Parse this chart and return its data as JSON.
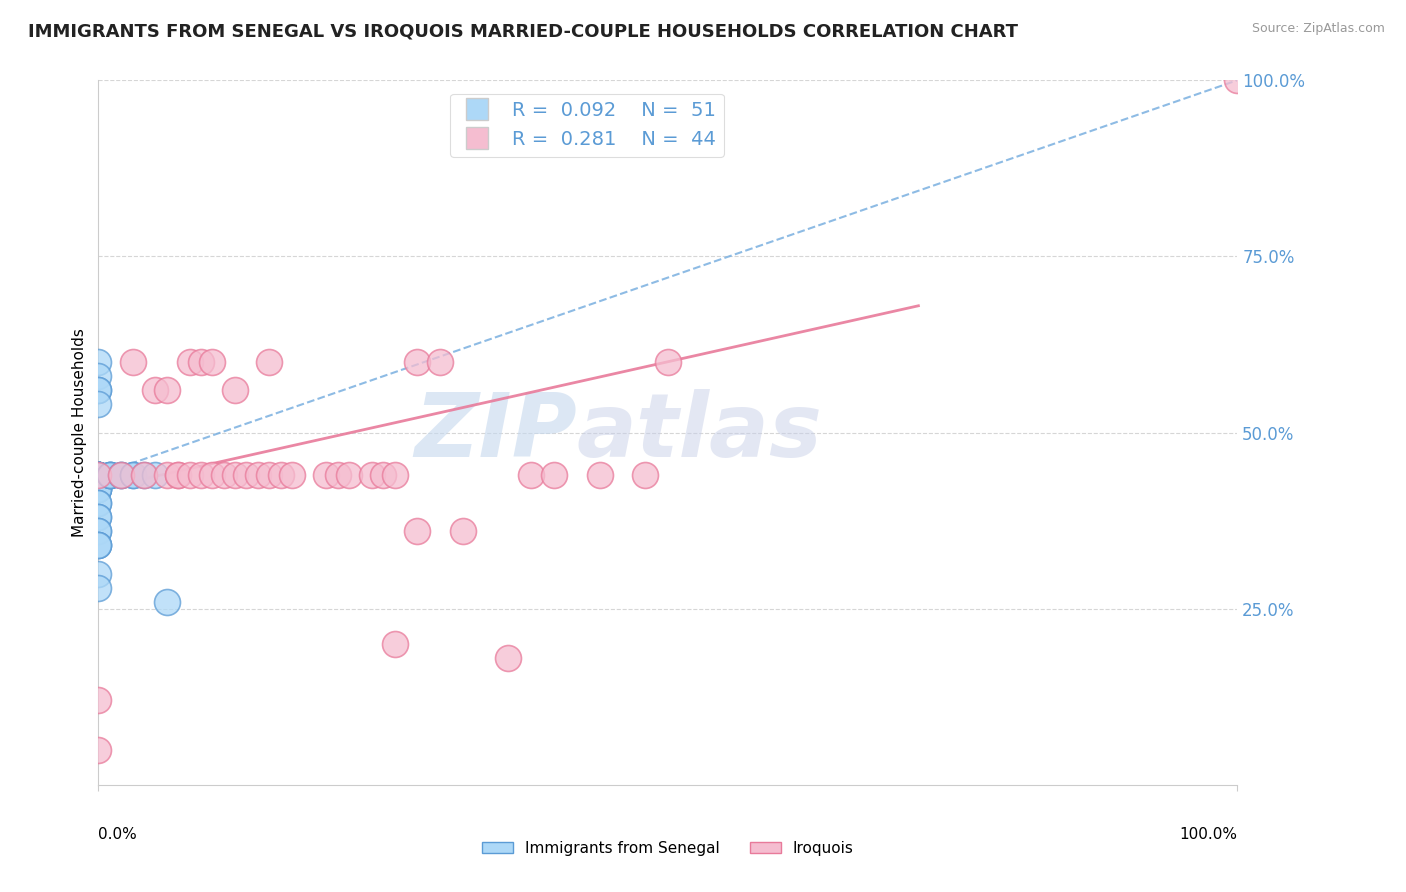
{
  "title": "IMMIGRANTS FROM SENEGAL VS IROQUOIS MARRIED-COUPLE HOUSEHOLDS CORRELATION CHART",
  "source": "Source: ZipAtlas.com",
  "ylabel": "Married-couple Households",
  "legend_label1": "Immigrants from Senegal",
  "legend_label2": "Iroquois",
  "r1": 0.092,
  "n1": 51,
  "r2": 0.281,
  "n2": 44,
  "color_blue": "#add8f7",
  "color_pink": "#f5bdd0",
  "color_blue_dark": "#5b9bd5",
  "color_pink_dark": "#e87a9a",
  "color_blue_line": "#7ab0e0",
  "color_pink_line": "#e87a9a",
  "watermark_zip": "ZIP",
  "watermark_atlas": "atlas",
  "blue_points_x": [
    0.0,
    0.0,
    0.0,
    0.0,
    0.0,
    0.0,
    0.0,
    0.0,
    0.0,
    0.0,
    0.0,
    0.0,
    0.0,
    0.0,
    0.0,
    0.0,
    0.0,
    0.0,
    0.0,
    0.0,
    0.0,
    0.0,
    0.0,
    0.0,
    0.0,
    0.0,
    0.0,
    0.0,
    0.0,
    0.0,
    0.0,
    0.0,
    0.0,
    0.0,
    0.0,
    0.0,
    0.0,
    0.0,
    0.0,
    0.0,
    0.01,
    0.01,
    0.01,
    0.01,
    0.02,
    0.02,
    0.03,
    0.03,
    0.04,
    0.05,
    0.06
  ],
  "blue_points_y": [
    0.44,
    0.44,
    0.44,
    0.44,
    0.44,
    0.44,
    0.44,
    0.44,
    0.44,
    0.44,
    0.44,
    0.44,
    0.44,
    0.44,
    0.44,
    0.44,
    0.44,
    0.44,
    0.44,
    0.44,
    0.42,
    0.42,
    0.42,
    0.42,
    0.4,
    0.4,
    0.38,
    0.38,
    0.36,
    0.36,
    0.34,
    0.34,
    0.34,
    0.3,
    0.28,
    0.6,
    0.58,
    0.56,
    0.56,
    0.54,
    0.44,
    0.44,
    0.44,
    0.44,
    0.44,
    0.44,
    0.44,
    0.44,
    0.44,
    0.44,
    0.26
  ],
  "pink_points_x": [
    0.0,
    0.0,
    0.0,
    0.02,
    0.03,
    0.04,
    0.05,
    0.06,
    0.06,
    0.07,
    0.07,
    0.08,
    0.08,
    0.09,
    0.09,
    0.1,
    0.1,
    0.11,
    0.12,
    0.12,
    0.13,
    0.14,
    0.15,
    0.15,
    0.16,
    0.17,
    0.2,
    0.21,
    0.22,
    0.24,
    0.26,
    0.28,
    0.3,
    0.38,
    0.4,
    0.44,
    0.48,
    0.5,
    0.25,
    0.26,
    0.28,
    0.32,
    0.36,
    1.0
  ],
  "pink_points_y": [
    0.44,
    0.12,
    0.05,
    0.44,
    0.6,
    0.44,
    0.56,
    0.44,
    0.56,
    0.44,
    0.44,
    0.6,
    0.44,
    0.44,
    0.6,
    0.6,
    0.44,
    0.44,
    0.44,
    0.56,
    0.44,
    0.44,
    0.44,
    0.6,
    0.44,
    0.44,
    0.44,
    0.44,
    0.44,
    0.44,
    0.2,
    0.6,
    0.6,
    0.44,
    0.44,
    0.44,
    0.44,
    0.6,
    0.44,
    0.44,
    0.36,
    0.36,
    0.18,
    1.0
  ],
  "blue_line_x0": 0.0,
  "blue_line_x1": 1.0,
  "blue_line_y0": 0.44,
  "blue_line_y1": 1.0,
  "pink_line_x0": 0.0,
  "pink_line_x1": 0.72,
  "pink_line_y0": 0.42,
  "pink_line_y1": 0.68,
  "xlim": [
    0.0,
    1.0
  ],
  "ylim": [
    0.0,
    1.0
  ],
  "yticks": [
    0.25,
    0.5,
    0.75,
    1.0
  ],
  "ytick_labels": [
    "25.0%",
    "50.0%",
    "75.0%",
    "100.0%"
  ],
  "title_fontsize": 13,
  "axis_fontsize": 11
}
